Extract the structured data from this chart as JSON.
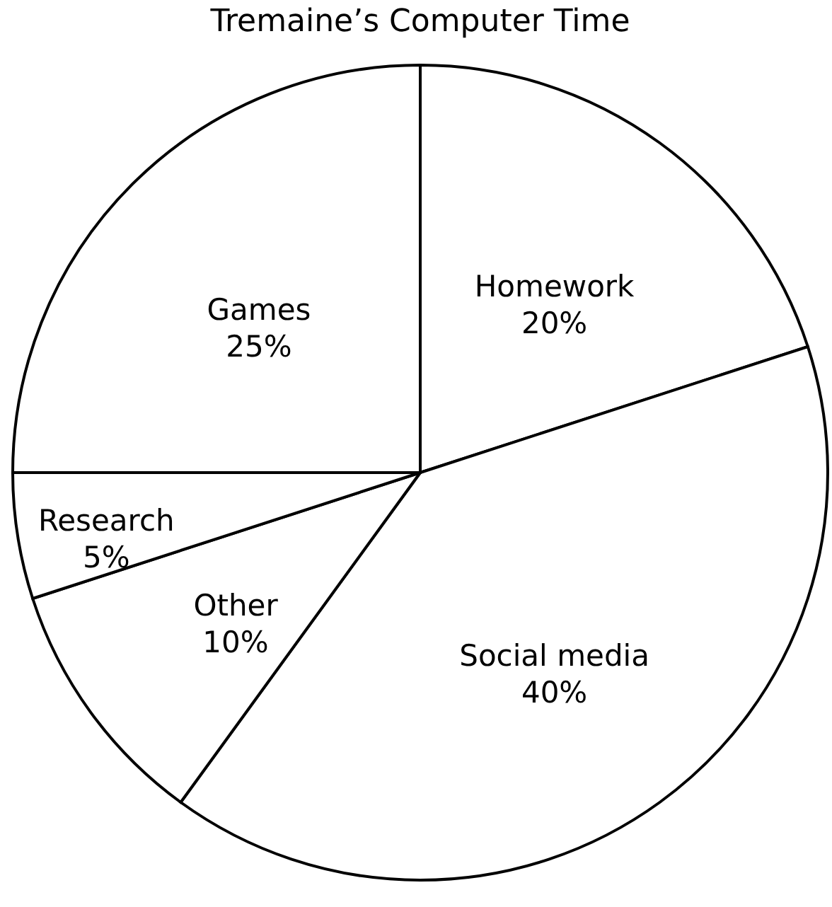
{
  "chart_data": {
    "type": "pie",
    "title": "Tremaine’s Computer Time",
    "categories": [
      "Homework",
      "Social media",
      "Other",
      "Research",
      "Games"
    ],
    "values": [
      20,
      40,
      10,
      5,
      25
    ],
    "value_labels": [
      "20%",
      "40%",
      "10%",
      "5%",
      "25%"
    ],
    "colors": [
      "#ffffff",
      "#ffffff",
      "#ffffff",
      "#ffffff",
      "#ffffff"
    ],
    "legend": false
  }
}
